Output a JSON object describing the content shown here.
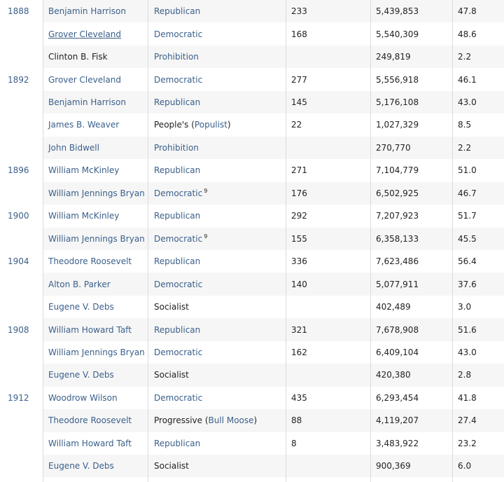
{
  "rows": [
    {
      "year": "1888",
      "candidate": "Benjamin Harrison",
      "cand_link": true,
      "party": "Republican",
      "party_link": true,
      "ev": "233",
      "pv": "5,439,853",
      "pct": "47.8"
    },
    {
      "year": "",
      "candidate": "Grover Cleveland",
      "cand_link": true,
      "cand_underline": true,
      "party": "Democratic",
      "party_link": true,
      "ev": "168",
      "pv": "5,540,309",
      "pct": "48.6"
    },
    {
      "year": "",
      "candidate": "Clinton B. Fisk",
      "cand_link": false,
      "party": "Prohibition",
      "party_link": true,
      "ev": "",
      "pv": "249,819",
      "pct": "2.2"
    },
    {
      "year": "1892",
      "candidate": "Grover Cleveland",
      "cand_link": true,
      "party": "Democratic",
      "party_link": true,
      "ev": "277",
      "pv": "5,556,918",
      "pct": "46.1"
    },
    {
      "year": "",
      "candidate": "Benjamin Harrison",
      "cand_link": true,
      "party": "Republican",
      "party_link": true,
      "ev": "145",
      "pv": "5,176,108",
      "pct": "43.0"
    },
    {
      "year": "",
      "candidate": "James B. Weaver",
      "cand_link": true,
      "party_prefix": "People's (",
      "party": "Populist",
      "party_suffix": ")",
      "party_link": true,
      "ev": "22",
      "pv": "1,027,329",
      "pct": "8.5"
    },
    {
      "year": "",
      "candidate": "John Bidwell",
      "cand_link": true,
      "party": "Prohibition",
      "party_link": true,
      "ev": "",
      "pv": "270,770",
      "pct": "2.2"
    },
    {
      "year": "1896",
      "candidate": "William McKinley",
      "cand_link": true,
      "party": "Republican",
      "party_link": true,
      "ev": "271",
      "pv": "7,104,779",
      "pct": "51.0"
    },
    {
      "year": "",
      "candidate": "William Jennings Bryan",
      "cand_link": true,
      "party": "Democratic",
      "party_link": true,
      "party_sup": "9",
      "ev": "176",
      "pv": "6,502,925",
      "pct": "46.7"
    },
    {
      "year": "1900",
      "candidate": "William McKinley",
      "cand_link": true,
      "party": "Republican",
      "party_link": true,
      "ev": "292",
      "pv": "7,207,923",
      "pct": "51.7"
    },
    {
      "year": "",
      "candidate": "William Jennings Bryan",
      "cand_link": true,
      "party": "Democratic",
      "party_link": true,
      "party_sup": "9",
      "ev": "155",
      "pv": "6,358,133",
      "pct": "45.5"
    },
    {
      "year": "1904",
      "candidate": "Theodore Roosevelt",
      "cand_link": true,
      "party": "Republican",
      "party_link": true,
      "ev": "336",
      "pv": "7,623,486",
      "pct": "56.4"
    },
    {
      "year": "",
      "candidate": "Alton B. Parker",
      "cand_link": true,
      "party": "Democratic",
      "party_link": true,
      "ev": "140",
      "pv": "5,077,911",
      "pct": "37.6"
    },
    {
      "year": "",
      "candidate": "Eugene V. Debs",
      "cand_link": true,
      "party": "Socialist",
      "party_link": false,
      "ev": "",
      "pv": "402,489",
      "pct": "3.0"
    },
    {
      "year": "1908",
      "candidate": "William Howard Taft",
      "cand_link": true,
      "party": "Republican",
      "party_link": true,
      "ev": "321",
      "pv": "7,678,908",
      "pct": "51.6"
    },
    {
      "year": "",
      "candidate": "William Jennings Bryan",
      "cand_link": true,
      "party": "Democratic",
      "party_link": true,
      "ev": "162",
      "pv": "6,409,104",
      "pct": "43.0"
    },
    {
      "year": "",
      "candidate": "Eugene V. Debs",
      "cand_link": true,
      "party": "Socialist",
      "party_link": false,
      "ev": "",
      "pv": "420,380",
      "pct": "2.8"
    },
    {
      "year": "1912",
      "candidate": "Woodrow Wilson",
      "cand_link": true,
      "party": "Democratic",
      "party_link": true,
      "ev": "435",
      "pv": "6,293,454",
      "pct": "41.8"
    },
    {
      "year": "",
      "candidate": "Theodore Roosevelt",
      "cand_link": true,
      "party_prefix": "Progressive (",
      "party": "Bull Moose",
      "party_suffix": ")",
      "party_link": true,
      "ev": "88",
      "pv": "4,119,207",
      "pct": "27.4"
    },
    {
      "year": "",
      "candidate": "William Howard Taft",
      "cand_link": true,
      "party": "Republican",
      "party_link": true,
      "ev": "8",
      "pv": "3,483,922",
      "pct": "23.2"
    },
    {
      "year": "",
      "candidate": "Eugene V. Debs",
      "cand_link": true,
      "party": "Socialist",
      "party_link": false,
      "ev": "",
      "pv": "900,369",
      "pct": "6.0"
    }
  ],
  "colors": {
    "link": "#3a5f8a",
    "text": "#222222",
    "shade": "#f6f6f6",
    "border": "#d7dbe2"
  }
}
